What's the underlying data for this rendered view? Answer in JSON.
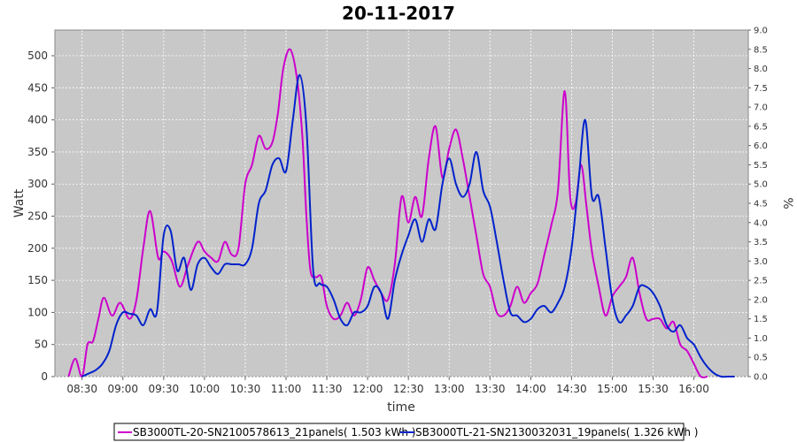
{
  "chart_data": {
    "type": "line",
    "title": "20-11-2017",
    "xlabel": "time",
    "ylabel": "Watt",
    "y2label": "%",
    "xlim": [
      "08:10",
      "16:40"
    ],
    "ylim": [
      0,
      540
    ],
    "y2lim": [
      0,
      9.0
    ],
    "x_tick_labels": [
      "08:30",
      "09:00",
      "09:30",
      "10:00",
      "10:30",
      "11:00",
      "11:30",
      "12:00",
      "12:30",
      "13:00",
      "13:30",
      "14:00",
      "14:30",
      "15:00",
      "15:30",
      "16:00"
    ],
    "y_ticks": [
      0,
      50,
      100,
      150,
      200,
      250,
      300,
      350,
      400,
      450,
      500
    ],
    "y2_tick_labels": [
      "0.0",
      "0.5",
      "1.0",
      "1.5",
      "2.0",
      "2.5",
      "3.0",
      "3.5",
      "4.0",
      "4.5",
      "5.0",
      "5.5",
      "6.0",
      "6.5",
      "7.0",
      "7.5",
      "8.0",
      "8.5",
      "9.0"
    ],
    "grid": true,
    "legend_position": "bottom",
    "series": [
      {
        "name": "SB3000TL-20-SN2100578613_21panels( 1.503 kWh )",
        "color": "#cc00cc",
        "x": [
          "08:20",
          "08:25",
          "08:30",
          "08:34",
          "08:38",
          "08:42",
          "08:46",
          "08:52",
          "08:58",
          "09:05",
          "09:10",
          "09:15",
          "09:20",
          "09:26",
          "09:30",
          "09:36",
          "09:42",
          "09:48",
          "09:55",
          "10:00",
          "10:05",
          "10:10",
          "10:15",
          "10:20",
          "10:25",
          "10:30",
          "10:35",
          "10:40",
          "10:45",
          "10:50",
          "10:54",
          "10:58",
          "11:03",
          "11:08",
          "11:12",
          "11:15",
          "11:18",
          "11:22",
          "11:26",
          "11:30",
          "11:35",
          "11:40",
          "11:45",
          "11:50",
          "11:55",
          "12:00",
          "12:05",
          "12:10",
          "12:15",
          "12:20",
          "12:25",
          "12:30",
          "12:35",
          "12:40",
          "12:45",
          "12:50",
          "12:55",
          "13:00",
          "13:05",
          "13:10",
          "13:15",
          "13:20",
          "13:25",
          "13:30",
          "13:35",
          "13:40",
          "13:45",
          "13:50",
          "13:55",
          "14:00",
          "14:05",
          "14:10",
          "14:15",
          "14:20",
          "14:25",
          "14:29",
          "14:33",
          "14:37",
          "14:41",
          "14:45",
          "14:50",
          "14:55",
          "15:00",
          "15:05",
          "15:10",
          "15:15",
          "15:20",
          "15:25",
          "15:30",
          "15:35",
          "15:40",
          "15:45",
          "15:50",
          "15:55",
          "16:00",
          "16:05",
          "16:10"
        ],
        "values": [
          0,
          28,
          0,
          50,
          55,
          90,
          123,
          95,
          115,
          90,
          120,
          200,
          258,
          185,
          195,
          180,
          140,
          175,
          210,
          195,
          185,
          180,
          210,
          190,
          200,
          300,
          330,
          375,
          355,
          365,
          410,
          480,
          510,
          465,
          375,
          250,
          165,
          155,
          155,
          110,
          90,
          95,
          115,
          95,
          120,
          170,
          150,
          130,
          120,
          175,
          280,
          240,
          280,
          250,
          340,
          390,
          310,
          355,
          385,
          340,
          280,
          220,
          160,
          140,
          100,
          95,
          110,
          140,
          115,
          130,
          145,
          190,
          235,
          290,
          445,
          280,
          270,
          330,
          265,
          195,
          140,
          95,
          125,
          140,
          155,
          185,
          130,
          90,
          90,
          90,
          75,
          85,
          50,
          40,
          20,
          0,
          0
        ]
      },
      {
        "name": "SB3000TL-21-SN2130032031_19panels( 1.326 kWh )",
        "color": "#0022cc",
        "x": [
          "08:30",
          "08:35",
          "08:40",
          "08:45",
          "08:50",
          "08:55",
          "09:00",
          "09:05",
          "09:10",
          "09:15",
          "09:20",
          "09:25",
          "09:30",
          "09:35",
          "09:40",
          "09:45",
          "09:50",
          "09:55",
          "10:00",
          "10:05",
          "10:10",
          "10:15",
          "10:20",
          "10:25",
          "10:30",
          "10:35",
          "10:40",
          "10:45",
          "10:50",
          "10:55",
          "11:00",
          "11:05",
          "11:10",
          "11:15",
          "11:20",
          "11:25",
          "11:30",
          "11:35",
          "11:40",
          "11:45",
          "11:50",
          "11:55",
          "12:00",
          "12:05",
          "12:10",
          "12:15",
          "12:20",
          "12:25",
          "12:30",
          "12:35",
          "12:40",
          "12:45",
          "12:50",
          "12:55",
          "13:00",
          "13:05",
          "13:10",
          "13:15",
          "13:20",
          "13:25",
          "13:30",
          "13:35",
          "13:40",
          "13:45",
          "13:50",
          "13:55",
          "14:00",
          "14:05",
          "14:10",
          "14:15",
          "14:20",
          "14:25",
          "14:30",
          "14:35",
          "14:40",
          "14:45",
          "14:50",
          "14:55",
          "15:00",
          "15:05",
          "15:10",
          "15:15",
          "15:20",
          "15:25",
          "15:30",
          "15:35",
          "15:40",
          "15:45",
          "15:50",
          "15:55",
          "16:00",
          "16:05",
          "16:10",
          "16:15",
          "16:20",
          "16:25",
          "16:30"
        ],
        "values": [
          0,
          5,
          10,
          20,
          40,
          80,
          100,
          98,
          95,
          80,
          105,
          100,
          220,
          228,
          165,
          185,
          135,
          175,
          185,
          170,
          160,
          175,
          175,
          175,
          175,
          200,
          270,
          290,
          330,
          340,
          320,
          400,
          470,
          390,
          165,
          145,
          140,
          120,
          90,
          80,
          100,
          100,
          110,
          140,
          130,
          90,
          150,
          190,
          220,
          245,
          210,
          245,
          230,
          300,
          340,
          300,
          280,
          300,
          350,
          290,
          265,
          210,
          150,
          100,
          95,
          85,
          90,
          105,
          110,
          100,
          115,
          140,
          200,
          300,
          400,
          280,
          280,
          200,
          120,
          85,
          95,
          110,
          140,
          140,
          130,
          110,
          80,
          70,
          80,
          60,
          50,
          30,
          15,
          5,
          0,
          0,
          0
        ]
      }
    ]
  }
}
